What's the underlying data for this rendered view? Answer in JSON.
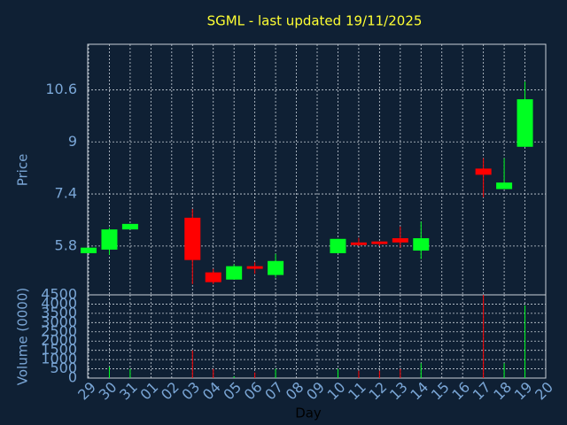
{
  "chart_data": {
    "type": "candlestick",
    "title": "SGML - last updated 19/11/2025",
    "x_label": "Day",
    "y_label": "Price",
    "categories": [
      "29",
      "30",
      "31",
      "01",
      "02",
      "03",
      "04",
      "05",
      "06",
      "07",
      "08",
      "09",
      "10",
      "11",
      "12",
      "13",
      "14",
      "15",
      "16",
      "17",
      "18",
      "19",
      "20"
    ],
    "open": [
      5.58,
      5.69,
      6.31,
      null,
      null,
      6.67,
      4.99,
      4.77,
      5.18,
      4.91,
      null,
      null,
      5.58,
      5.91,
      5.94,
      6.04,
      5.66,
      null,
      null,
      8.18,
      7.55,
      8.85,
      null
    ],
    "high": [
      5.75,
      6.36,
      6.48,
      null,
      null,
      6.94,
      5.1,
      5.24,
      5.3,
      5.56,
      null,
      null,
      6.02,
      6.05,
      5.94,
      6.4,
      6.55,
      null,
      null,
      8.5,
      8.5,
      10.85,
      null
    ],
    "low": [
      5.58,
      5.53,
      6.31,
      null,
      null,
      4.63,
      4.63,
      4.77,
      4.95,
      4.83,
      null,
      null,
      5.58,
      5.8,
      5.8,
      5.75,
      5.4,
      null,
      null,
      7.3,
      7.55,
      8.85,
      null
    ],
    "close": [
      5.75,
      6.31,
      6.48,
      null,
      null,
      5.37,
      4.69,
      5.18,
      5.1,
      5.34,
      null,
      null,
      6.02,
      5.83,
      5.86,
      5.91,
      6.04,
      null,
      null,
      7.99,
      7.75,
      10.31,
      null
    ],
    "up_color": "#00ff22",
    "down_color": "#ff0000",
    "ylim": [
      4.3,
      12.0
    ],
    "yticks": [
      5.8,
      7.4,
      9,
      10.6
    ],
    "grid": true,
    "volume": {
      "label": "Volume (0000)",
      "values": [
        0,
        600,
        500,
        null,
        null,
        1500,
        500,
        100,
        300,
        500,
        null,
        null,
        500,
        400,
        400,
        500,
        800,
        null,
        null,
        4500,
        800,
        3930,
        null
      ],
      "ylim": [
        0,
        4500
      ],
      "yticks": [
        0,
        500,
        1000,
        1500,
        2000,
        2500,
        3000,
        3500,
        4000,
        4500
      ]
    }
  }
}
